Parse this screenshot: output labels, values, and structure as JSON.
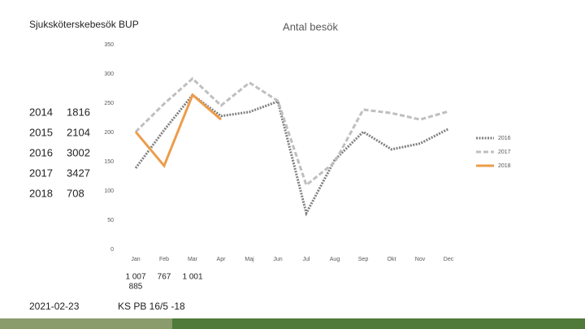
{
  "header": {
    "title": "Sjuksköterskebesök BUP"
  },
  "table": {
    "rows": [
      [
        2014,
        1816
      ],
      [
        2015,
        2104
      ],
      [
        2016,
        3002
      ],
      [
        2017,
        3427
      ],
      [
        2018,
        708
      ]
    ]
  },
  "notes": {
    "row1": [
      "1 007",
      "767",
      "1 001"
    ],
    "row2": "885"
  },
  "footer": {
    "date": "2021-02-23",
    "ref": "KS PB 16/5 -18"
  },
  "chart_data": {
    "type": "line",
    "title": "Antal besök",
    "categories": [
      "Jan",
      "Feb",
      "Mar",
      "Apr",
      "Maj",
      "Jun",
      "Jul",
      "Aug",
      "Sep",
      "Okt",
      "Nov",
      "Dec"
    ],
    "series": [
      {
        "name": "2016",
        "color": "#7f7f7f",
        "dash": "dotted",
        "values": [
          139,
          204,
          264,
          228,
          235,
          253,
          62,
          153,
          201,
          171,
          181,
          206
        ]
      },
      {
        "name": "2017",
        "color": "#bfbfbf",
        "dash": "dashed",
        "values": [
          201,
          249,
          292,
          246,
          285,
          254,
          110,
          149,
          239,
          233,
          222,
          236
        ]
      },
      {
        "name": "2018",
        "color": "#ed9c4a",
        "dash": "solid",
        "values": [
          201,
          143,
          264,
          222,
          null,
          null,
          null,
          null,
          null,
          null,
          null,
          null
        ]
      }
    ],
    "ylim": [
      0,
      350
    ],
    "yticks": [
      0,
      50,
      100,
      150,
      200,
      250,
      300,
      350
    ],
    "grid": false,
    "legend": "right"
  }
}
